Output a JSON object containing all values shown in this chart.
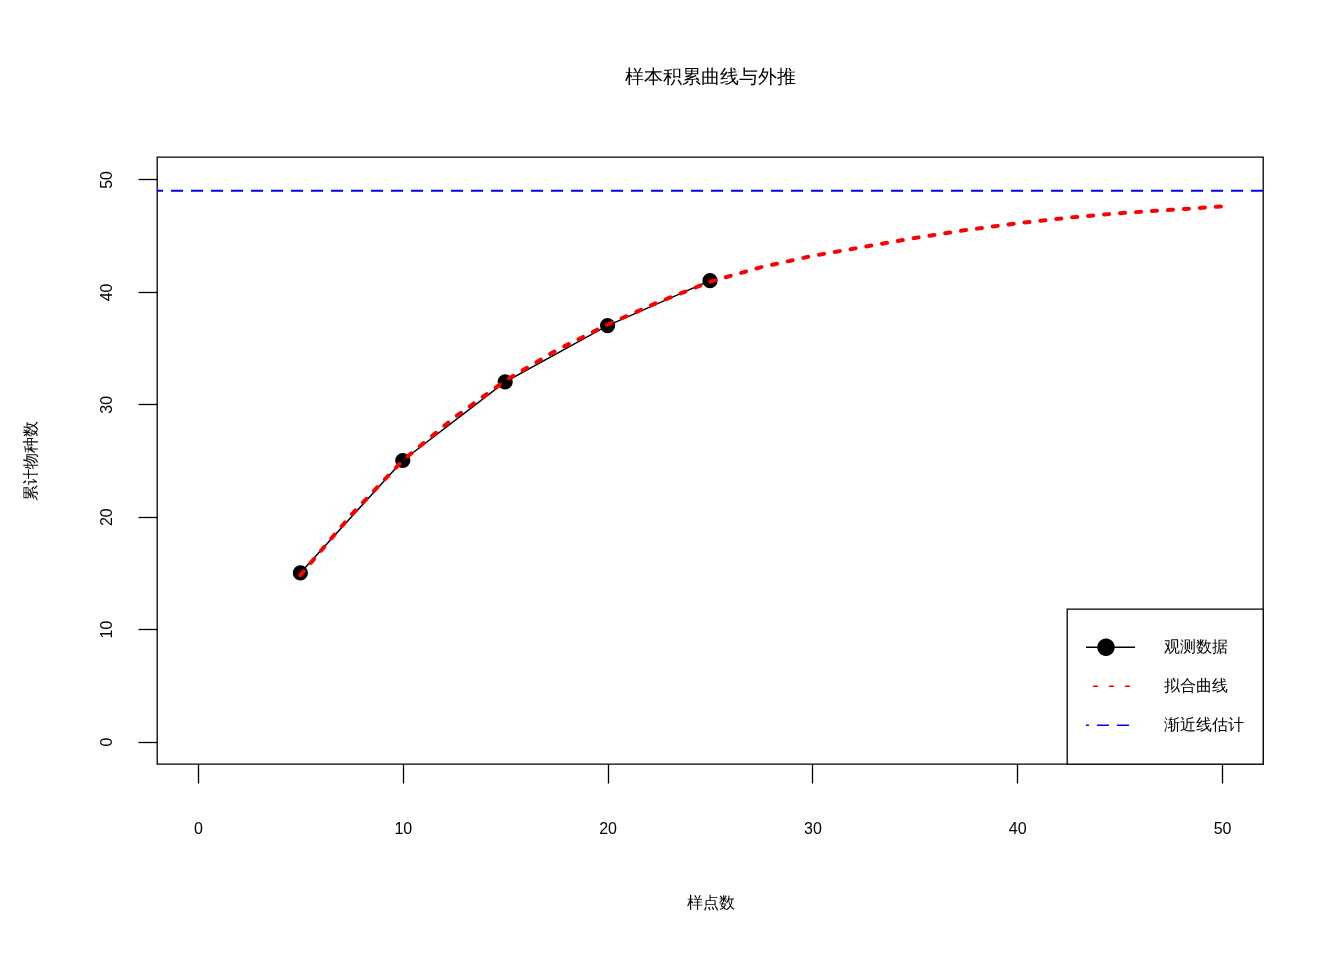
{
  "chart_data": {
    "type": "line",
    "title": "样本积累曲线与外推",
    "xlabel": "样点数",
    "ylabel": "累计物种数",
    "xlim": [
      -2,
      52
    ],
    "xticks": [
      0,
      10,
      20,
      30,
      40,
      50
    ],
    "ylim": [
      -2,
      52
    ],
    "yticks": [
      0,
      10,
      20,
      30,
      40,
      50
    ],
    "legend": "bottom right",
    "series": [
      {
        "name": "观测数据",
        "color": "#000000",
        "marker": "circle",
        "line_style": "solid",
        "x": [
          5,
          10,
          15,
          20,
          25
        ],
        "values": [
          15,
          25,
          32,
          37,
          41
        ]
      },
      {
        "name": "拟合曲线",
        "color": "#ff0000",
        "marker": "none",
        "line_style": "dotted",
        "x": [
          5,
          7.5,
          10,
          12.5,
          15,
          17.5,
          20,
          22.5,
          25,
          27.5,
          30,
          32.5,
          35,
          37.5,
          40,
          42.5,
          45,
          47.5,
          50
        ],
        "values": [
          14.8,
          20.2,
          25.0,
          28.8,
          32.1,
          34.8,
          37.1,
          39.1,
          40.9,
          42.2,
          43.2,
          44.0,
          44.8,
          45.5,
          46.1,
          46.6,
          47.0,
          47.3,
          47.6
        ]
      }
    ],
    "ref_lines": [
      {
        "axis": "y",
        "value": 49,
        "label": "渐近线估计",
        "color": "#0000ff",
        "line_style": "dashed"
      }
    ]
  }
}
